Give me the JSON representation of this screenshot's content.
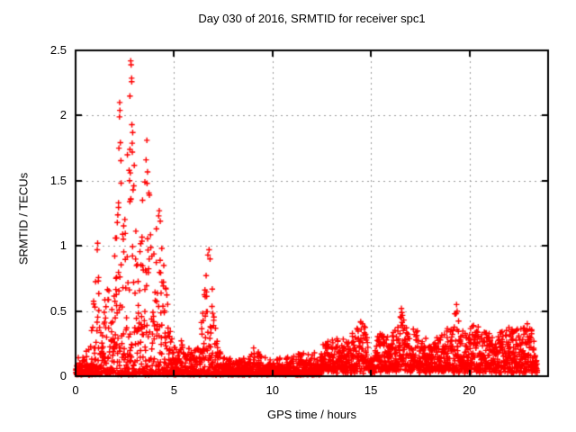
{
  "figure": {
    "background": "#ffffff",
    "text_color": "#000000"
  },
  "chart_data": {
    "type": "scatter",
    "title": "Day 030 of 2016, SRMTID for receiver spc1",
    "xlabel": "GPS time / hours",
    "ylabel": "SRMTID / TECUs",
    "xlim": [
      0,
      24
    ],
    "ylim": [
      0,
      2.5
    ],
    "xticks": [
      0,
      5,
      10,
      15,
      20
    ],
    "xtick_labels": [
      "0",
      "5",
      "10",
      "15",
      "20"
    ],
    "yticks": [
      0,
      0.5,
      1,
      1.5,
      2,
      2.5
    ],
    "ytick_labels": [
      "0",
      "0.5",
      "1",
      "1.5",
      "2",
      "2.5"
    ],
    "grid": true,
    "grid_style": "dashed",
    "grid_color": "#999999",
    "axis_color": "#000000",
    "legend": "none",
    "series_name": "SRMTID",
    "marker": {
      "shape": "plus",
      "color": "#ff0000",
      "size": 7,
      "stroke": 1.4
    },
    "sampling_interval_hours": 0.008333,
    "t_start": 0.0,
    "t_end": 23.45,
    "rng_seed": 1337,
    "baseline": {
      "floor_left": 0.02,
      "floor_right": 0.05,
      "right_region_start": 12.5,
      "shape_left": 2.6,
      "shape_right": 1.7
    },
    "envelope_max": [
      [
        0.0,
        0.15
      ],
      [
        0.3,
        0.16
      ],
      [
        0.55,
        0.22
      ],
      [
        0.75,
        0.2
      ],
      [
        0.9,
        0.55
      ],
      [
        1.0,
        0.85
      ],
      [
        1.1,
        1.02
      ],
      [
        1.2,
        0.75
      ],
      [
        1.3,
        0.35
      ],
      [
        1.4,
        0.4
      ],
      [
        1.5,
        0.68
      ],
      [
        1.65,
        0.75
      ],
      [
        1.8,
        0.55
      ],
      [
        1.9,
        0.75
      ],
      [
        2.0,
        1.07
      ],
      [
        2.1,
        1.1
      ],
      [
        2.18,
        1.45
      ],
      [
        2.25,
        2.12
      ],
      [
        2.33,
        1.95
      ],
      [
        2.45,
        1.55
      ],
      [
        2.55,
        1.7
      ],
      [
        2.65,
        2.0
      ],
      [
        2.75,
        2.3
      ],
      [
        2.85,
        2.43
      ],
      [
        2.93,
        1.9
      ],
      [
        3.0,
        1.55
      ],
      [
        3.1,
        1.2
      ],
      [
        3.2,
        0.95
      ],
      [
        3.35,
        1.1
      ],
      [
        3.45,
        1.35
      ],
      [
        3.55,
        1.72
      ],
      [
        3.65,
        1.82
      ],
      [
        3.75,
        1.45
      ],
      [
        3.85,
        1.2
      ],
      [
        3.95,
        1.0
      ],
      [
        4.05,
        1.05
      ],
      [
        4.15,
        1.22
      ],
      [
        4.28,
        1.28
      ],
      [
        4.4,
        1.02
      ],
      [
        4.5,
        0.85
      ],
      [
        4.65,
        0.62
      ],
      [
        4.8,
        0.5
      ],
      [
        5.0,
        0.38
      ],
      [
        5.2,
        0.25
      ],
      [
        5.45,
        0.33
      ],
      [
        5.6,
        0.25
      ],
      [
        5.9,
        0.2
      ],
      [
        6.1,
        0.22
      ],
      [
        6.3,
        0.3
      ],
      [
        6.5,
        0.55
      ],
      [
        6.65,
        0.88
      ],
      [
        6.8,
        0.98
      ],
      [
        6.9,
        0.8
      ],
      [
        7.0,
        0.55
      ],
      [
        7.15,
        0.32
      ],
      [
        7.3,
        0.2
      ],
      [
        7.6,
        0.15
      ],
      [
        8.0,
        0.12
      ],
      [
        8.4,
        0.14
      ],
      [
        8.8,
        0.13
      ],
      [
        9.1,
        0.24
      ],
      [
        9.4,
        0.16
      ],
      [
        9.8,
        0.12
      ],
      [
        10.2,
        0.13
      ],
      [
        10.6,
        0.15
      ],
      [
        11.0,
        0.15
      ],
      [
        11.35,
        0.2
      ],
      [
        11.7,
        0.16
      ],
      [
        12.0,
        0.18
      ],
      [
        12.3,
        0.22
      ],
      [
        12.7,
        0.26
      ],
      [
        13.0,
        0.28
      ],
      [
        13.3,
        0.3
      ],
      [
        13.6,
        0.28
      ],
      [
        13.9,
        0.26
      ],
      [
        14.15,
        0.35
      ],
      [
        14.45,
        0.45
      ],
      [
        14.7,
        0.42
      ],
      [
        14.95,
        0.15
      ],
      [
        15.1,
        0.12
      ],
      [
        15.3,
        0.28
      ],
      [
        15.5,
        0.38
      ],
      [
        15.7,
        0.33
      ],
      [
        16.0,
        0.28
      ],
      [
        16.3,
        0.4
      ],
      [
        16.55,
        0.53
      ],
      [
        16.8,
        0.4
      ],
      [
        17.05,
        0.32
      ],
      [
        17.3,
        0.44
      ],
      [
        17.5,
        0.26
      ],
      [
        17.8,
        0.28
      ],
      [
        18.1,
        0.26
      ],
      [
        18.4,
        0.3
      ],
      [
        18.7,
        0.33
      ],
      [
        19.0,
        0.38
      ],
      [
        19.35,
        0.56
      ],
      [
        19.6,
        0.4
      ],
      [
        19.85,
        0.32
      ],
      [
        20.1,
        0.38
      ],
      [
        20.3,
        0.42
      ],
      [
        20.6,
        0.32
      ],
      [
        20.9,
        0.34
      ],
      [
        21.2,
        0.31
      ],
      [
        21.5,
        0.36
      ],
      [
        21.8,
        0.42
      ],
      [
        22.1,
        0.37
      ],
      [
        22.4,
        0.42
      ],
      [
        22.7,
        0.38
      ],
      [
        23.0,
        0.43
      ],
      [
        23.15,
        0.38
      ],
      [
        23.3,
        0.25
      ],
      [
        23.45,
        0.1
      ]
    ],
    "peak_points": [
      [
        2.8,
        2.42
      ],
      [
        2.82,
        2.39
      ],
      [
        2.85,
        2.26
      ],
      [
        2.76,
        2.15
      ],
      [
        2.24,
        2.1
      ],
      [
        2.25,
        2.04
      ],
      [
        2.23,
        1.99
      ],
      [
        2.86,
        1.93
      ],
      [
        2.9,
        1.87
      ],
      [
        3.62,
        1.81
      ],
      [
        2.2,
        1.75
      ],
      [
        2.76,
        1.74
      ],
      [
        2.88,
        1.72
      ],
      [
        3.58,
        1.66
      ],
      [
        2.72,
        1.58
      ],
      [
        2.78,
        1.56
      ],
      [
        2.74,
        1.5
      ],
      [
        3.52,
        1.49
      ],
      [
        3.63,
        1.48
      ],
      [
        2.92,
        1.43
      ],
      [
        2.81,
        1.36
      ],
      [
        3.4,
        1.35
      ],
      [
        2.18,
        1.33
      ],
      [
        4.25,
        1.27
      ],
      [
        4.22,
        1.23
      ],
      [
        4.3,
        1.19
      ],
      [
        2.08,
        1.06
      ],
      [
        1.12,
        1.02
      ],
      [
        1.1,
        0.97
      ],
      [
        6.78,
        0.97
      ],
      [
        6.72,
        0.93
      ],
      [
        6.83,
        0.9
      ],
      [
        16.55,
        0.52
      ],
      [
        19.35,
        0.55
      ],
      [
        19.38,
        0.5
      ]
    ]
  }
}
